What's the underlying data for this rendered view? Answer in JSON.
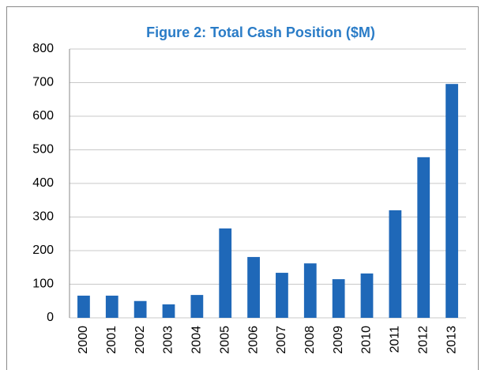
{
  "chart_data": {
    "type": "bar",
    "title": "Figure 2: Total Cash Position ($M)",
    "categories": [
      "2000",
      "2001",
      "2002",
      "2003",
      "2004",
      "2005",
      "2006",
      "2007",
      "2008",
      "2009",
      "2010",
      "2011",
      "2012",
      "2013"
    ],
    "values": [
      66,
      66,
      50,
      40,
      68,
      266,
      181,
      134,
      162,
      115,
      132,
      320,
      478,
      696
    ],
    "color": "#1f68b8",
    "ylim": [
      0,
      800
    ],
    "yticks": [
      0,
      100,
      200,
      300,
      400,
      500,
      600,
      700,
      800
    ],
    "grid": true
  }
}
